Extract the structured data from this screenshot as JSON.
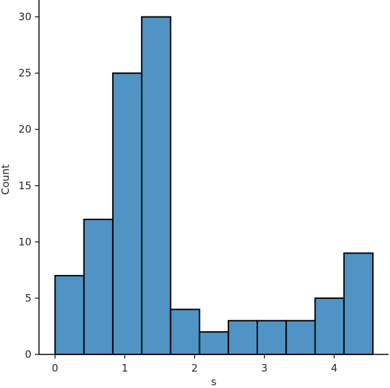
{
  "chart_data": {
    "type": "bar",
    "xlabel": "s",
    "ylabel": "Count",
    "bar_color": "#4f94c4",
    "edge_color": "#000000",
    "bins": [
      {
        "start": 0.0,
        "end": 0.414,
        "count": 7
      },
      {
        "start": 0.414,
        "end": 0.828,
        "count": 12
      },
      {
        "start": 0.828,
        "end": 1.242,
        "count": 25
      },
      {
        "start": 1.242,
        "end": 1.656,
        "count": 30
      },
      {
        "start": 1.656,
        "end": 2.07,
        "count": 4
      },
      {
        "start": 2.07,
        "end": 2.484,
        "count": 2
      },
      {
        "start": 2.484,
        "end": 2.898,
        "count": 3
      },
      {
        "start": 2.898,
        "end": 3.312,
        "count": 3
      },
      {
        "start": 3.312,
        "end": 3.726,
        "count": 3
      },
      {
        "start": 3.726,
        "end": 4.14,
        "count": 5
      },
      {
        "start": 4.14,
        "end": 4.554,
        "count": 9
      }
    ],
    "xticks": [
      0,
      1,
      2,
      3,
      4
    ],
    "xtick_labels": [
      "0",
      "1",
      "2",
      "3",
      "4"
    ],
    "yticks": [
      0,
      5,
      10,
      15,
      20,
      25,
      30
    ],
    "ytick_labels": [
      "0",
      "5",
      "10",
      "15",
      "20",
      "25",
      "30"
    ],
    "xlim": [
      -0.23,
      4.78
    ],
    "ylim": [
      0,
      31.5
    ],
    "grid": false
  }
}
